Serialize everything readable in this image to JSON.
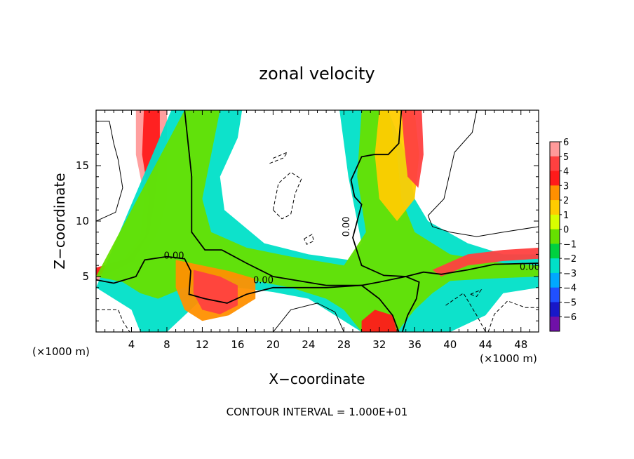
{
  "chart_data": {
    "type": "heatmap",
    "title": "zonal velocity",
    "xlabel": "X−coordinate",
    "ylabel": "Z−coordinate",
    "x_unit_left": "(×1000 m)",
    "x_unit_right": "(×1000 m)",
    "xlim": [
      0,
      50
    ],
    "ylim": [
      0,
      20
    ],
    "x_ticks": [
      4,
      8,
      12,
      16,
      20,
      24,
      28,
      32,
      36,
      40,
      44,
      48
    ],
    "y_ticks": [
      5,
      10,
      15
    ],
    "colorbar_levels": [
      6,
      5,
      4,
      3,
      2,
      1,
      0,
      -1,
      -2,
      -3,
      -4,
      -5,
      -6
    ],
    "colorbar_colors": [
      "#ff9a9a",
      "#ff4040",
      "#ff1a1a",
      "#ff9000",
      "#ffcc00",
      "#d8ff00",
      "#66e000",
      "#00d040",
      "#00e0c8",
      "#00a8ff",
      "#2050ff",
      "#1818c8",
      "#7010a8"
    ],
    "contour_label": "0.00",
    "contour_interval": "CONTOUR INTERVAL = 1.000E+01",
    "regions": [
      {
        "name": "left-jet",
        "value": 6,
        "points": [
          [
            0,
            5.5
          ],
          [
            3,
            6.5
          ],
          [
            5,
            8.5
          ],
          [
            5.5,
            12
          ],
          [
            4.5,
            16
          ],
          [
            4.5,
            20
          ],
          [
            8,
            20
          ],
          [
            8,
            16
          ],
          [
            8,
            12
          ],
          [
            7,
            9
          ],
          [
            5,
            6.5
          ],
          [
            2,
            5
          ],
          [
            0,
            4.6
          ]
        ]
      },
      {
        "name": "left-jet-core",
        "value": 4,
        "points": [
          [
            0,
            5.8
          ],
          [
            3.5,
            6.6
          ],
          [
            5.6,
            8.6
          ],
          [
            6,
            12
          ],
          [
            5.2,
            16
          ],
          [
            5.4,
            20
          ],
          [
            7.2,
            20
          ],
          [
            7.2,
            16
          ],
          [
            6.6,
            12
          ],
          [
            6,
            9
          ],
          [
            4.2,
            6.4
          ],
          [
            1.6,
            5.4
          ],
          [
            0,
            5.1
          ]
        ]
      },
      {
        "name": "center-plume",
        "value": -2,
        "points": [
          [
            8.5,
            20
          ],
          [
            16.5,
            20
          ],
          [
            16,
            17.5
          ],
          [
            14,
            14
          ],
          [
            14.5,
            11
          ],
          [
            19,
            8
          ],
          [
            24,
            7
          ],
          [
            28.5,
            6.5
          ],
          [
            30,
            8
          ],
          [
            28.5,
            14
          ],
          [
            27.5,
            20
          ],
          [
            33,
            20
          ],
          [
            35,
            16
          ],
          [
            36,
            12
          ],
          [
            37.5,
            10
          ],
          [
            42,
            8
          ],
          [
            46,
            7
          ],
          [
            50,
            7
          ],
          [
            50,
            4
          ],
          [
            46,
            3.5
          ],
          [
            44,
            1.5
          ],
          [
            40,
            0
          ],
          [
            30,
            0
          ],
          [
            26,
            2
          ],
          [
            24,
            3
          ],
          [
            20,
            3.6
          ],
          [
            16,
            4
          ],
          [
            12,
            3
          ],
          [
            8,
            0
          ],
          [
            5,
            0
          ],
          [
            4,
            2
          ],
          [
            0,
            4
          ]
        ]
      },
      {
        "name": "center-plume-core",
        "value": 0,
        "points": [
          [
            10,
            20
          ],
          [
            14,
            20
          ],
          [
            13,
            16
          ],
          [
            12,
            12
          ],
          [
            13,
            9
          ],
          [
            17,
            7.6
          ],
          [
            22,
            6.8
          ],
          [
            28,
            6
          ],
          [
            30.5,
            9
          ],
          [
            29.5,
            14
          ],
          [
            30,
            20
          ],
          [
            33,
            20
          ],
          [
            34,
            16
          ],
          [
            34.5,
            12
          ],
          [
            36,
            9
          ],
          [
            40,
            7
          ],
          [
            46,
            6.2
          ],
          [
            50,
            6
          ],
          [
            50,
            5
          ],
          [
            44,
            4.8
          ],
          [
            40,
            4.6
          ],
          [
            38,
            3.5
          ],
          [
            36,
            2
          ],
          [
            34,
            0
          ],
          [
            30,
            0
          ],
          [
            28,
            2
          ],
          [
            26,
            3
          ],
          [
            22,
            4
          ],
          [
            18,
            4.6
          ],
          [
            14,
            5
          ],
          [
            10,
            4
          ],
          [
            7,
            3
          ],
          [
            5,
            3.5
          ],
          [
            3,
            4.5
          ],
          [
            0,
            5
          ]
        ]
      },
      {
        "name": "lower-hot",
        "value": 3,
        "points": [
          [
            9,
            6.5
          ],
          [
            12,
            6
          ],
          [
            15,
            5.5
          ],
          [
            18,
            4.8
          ],
          [
            18,
            3
          ],
          [
            15,
            1.5
          ],
          [
            12,
            1
          ],
          [
            10,
            2
          ],
          [
            9,
            4
          ]
        ]
      },
      {
        "name": "lower-hot-core",
        "value": 5,
        "points": [
          [
            11,
            5.6
          ],
          [
            14,
            5
          ],
          [
            16,
            4.2
          ],
          [
            16,
            2.4
          ],
          [
            14,
            1.6
          ],
          [
            12,
            2
          ],
          [
            11,
            3.5
          ]
        ]
      },
      {
        "name": "bottom-right-hot",
        "value": 4,
        "points": [
          [
            30,
            0
          ],
          [
            34,
            0
          ],
          [
            33.5,
            1.5
          ],
          [
            31.5,
            2
          ],
          [
            30,
            1
          ]
        ]
      },
      {
        "name": "upper-right-warm",
        "value": 2,
        "points": [
          [
            32,
            20
          ],
          [
            36,
            20
          ],
          [
            36.5,
            16
          ],
          [
            36,
            12
          ],
          [
            34,
            10
          ],
          [
            32,
            12
          ],
          [
            31.5,
            16
          ]
        ]
      },
      {
        "name": "upper-right-core",
        "value": 5,
        "points": [
          [
            34.5,
            20
          ],
          [
            36.8,
            20
          ],
          [
            37,
            16
          ],
          [
            36.4,
            13
          ],
          [
            35.2,
            14
          ],
          [
            34.8,
            17
          ]
        ]
      },
      {
        "name": "right-jet",
        "value": 5,
        "points": [
          [
            38,
            5.6
          ],
          [
            42,
            7
          ],
          [
            46,
            7.4
          ],
          [
            50,
            7.6
          ],
          [
            50,
            6.6
          ],
          [
            46,
            6.4
          ],
          [
            42,
            6
          ],
          [
            39,
            5
          ]
        ]
      }
    ],
    "contours": [
      {
        "style": "solid",
        "points": [
          [
            10,
            20
          ],
          [
            10.8,
            14
          ],
          [
            10.8,
            9
          ],
          [
            12.3,
            7.4
          ],
          [
            14.2,
            7.4
          ]
        ]
      },
      {
        "style": "solid",
        "points": [
          [
            0,
            4.7
          ],
          [
            2,
            4.4
          ],
          [
            4.5,
            5
          ],
          [
            5.5,
            6.5
          ],
          [
            8,
            6.8
          ],
          [
            10,
            6.6
          ],
          [
            10.7,
            5.5
          ],
          [
            10.5,
            3.4
          ],
          [
            12.3,
            3
          ],
          [
            14.8,
            2.6
          ],
          [
            17,
            3.4
          ],
          [
            20,
            4
          ],
          [
            26,
            4
          ],
          [
            30,
            4.2
          ],
          [
            32,
            3
          ],
          [
            33.5,
            1.5
          ],
          [
            34.2,
            0
          ]
        ]
      },
      {
        "style": "solid",
        "points": [
          [
            14.2,
            7.4
          ],
          [
            17,
            6.2
          ],
          [
            20,
            5
          ],
          [
            26,
            4.2
          ],
          [
            30,
            4.2
          ],
          [
            32,
            4.5
          ],
          [
            35,
            5
          ],
          [
            37,
            5.4
          ],
          [
            39,
            5.2
          ],
          [
            42,
            5.6
          ],
          [
            45,
            6.1
          ],
          [
            50,
            6.2
          ]
        ]
      },
      {
        "style": "solid",
        "points": [
          [
            34.5,
            20
          ],
          [
            34.2,
            17
          ],
          [
            33,
            16
          ],
          [
            31.4,
            16
          ],
          [
            30,
            15.8
          ],
          [
            28.8,
            13.7
          ],
          [
            29.2,
            12.2
          ],
          [
            30,
            11.5
          ],
          [
            29,
            8.5
          ],
          [
            30,
            6
          ],
          [
            32.5,
            5.1
          ],
          [
            35,
            5
          ],
          [
            36.5,
            4.5
          ],
          [
            36.2,
            3
          ],
          [
            35.2,
            1.5
          ],
          [
            34.6,
            0
          ]
        ]
      },
      {
        "style": "thin",
        "points": [
          [
            0,
            19
          ],
          [
            1.5,
            19
          ],
          [
            2,
            17
          ],
          [
            2.5,
            15.5
          ],
          [
            3,
            13
          ],
          [
            2.2,
            10.8
          ],
          [
            0,
            10
          ]
        ]
      },
      {
        "style": "thin",
        "points": [
          [
            50,
            20
          ],
          [
            43,
            20
          ],
          [
            42.5,
            18
          ],
          [
            40.5,
            16.2
          ],
          [
            39.3,
            12
          ],
          [
            37.5,
            10.5
          ],
          [
            38,
            9.5
          ],
          [
            40,
            9
          ],
          [
            43,
            8.6
          ],
          [
            46,
            9
          ],
          [
            50,
            9.5
          ]
        ]
      },
      {
        "style": "thin",
        "points": [
          [
            20,
            0
          ],
          [
            22,
            2
          ],
          [
            25,
            2.6
          ],
          [
            27,
            1.8
          ],
          [
            28,
            0
          ]
        ]
      },
      {
        "style": "dashed",
        "points": [
          [
            0,
            2
          ],
          [
            2.5,
            2
          ],
          [
            3,
            1
          ],
          [
            3.8,
            0
          ]
        ]
      },
      {
        "style": "dashed",
        "points": [
          [
            20,
            11
          ],
          [
            21,
            10.2
          ],
          [
            22,
            10.6
          ],
          [
            22.5,
            12.5
          ],
          [
            23.2,
            13.8
          ],
          [
            22,
            14.4
          ],
          [
            20.6,
            13.4
          ],
          [
            20,
            11
          ]
        ]
      },
      {
        "style": "dashed",
        "points": [
          [
            19.6,
            15.2
          ],
          [
            21.2,
            15.7
          ],
          [
            21.6,
            16.2
          ],
          [
            19.8,
            15.6
          ]
        ]
      },
      {
        "style": "dashed",
        "points": [
          [
            23.5,
            8.4
          ],
          [
            24.4,
            8.8
          ],
          [
            24.6,
            8.2
          ],
          [
            23.8,
            7.9
          ],
          [
            23.5,
            8.4
          ]
        ]
      },
      {
        "style": "dashed",
        "points": [
          [
            39.5,
            2.4
          ],
          [
            41.5,
            3.5
          ],
          [
            43,
            1.5
          ],
          [
            44,
            0
          ]
        ]
      },
      {
        "style": "dashed",
        "points": [
          [
            44.3,
            0
          ],
          [
            45,
            1.6
          ],
          [
            46.5,
            2.8
          ],
          [
            48.5,
            2.2
          ],
          [
            50,
            2.2
          ]
        ]
      },
      {
        "style": "dashed",
        "points": [
          [
            42.3,
            3.4
          ],
          [
            43.5,
            3.8
          ],
          [
            43,
            3.2
          ],
          [
            42.3,
            3.4
          ]
        ]
      }
    ]
  }
}
